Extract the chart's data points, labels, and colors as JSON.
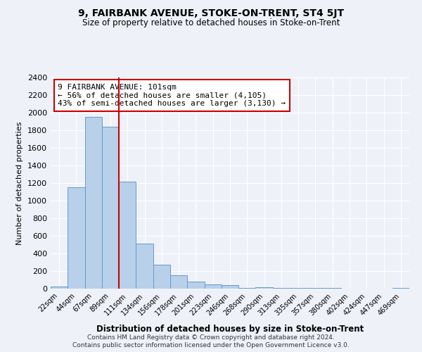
{
  "title": "9, FAIRBANK AVENUE, STOKE-ON-TRENT, ST4 5JT",
  "subtitle": "Size of property relative to detached houses in Stoke-on-Trent",
  "xlabel": "Distribution of detached houses by size in Stoke-on-Trent",
  "ylabel": "Number of detached properties",
  "bin_labels": [
    "22sqm",
    "44sqm",
    "67sqm",
    "89sqm",
    "111sqm",
    "134sqm",
    "156sqm",
    "178sqm",
    "201sqm",
    "223sqm",
    "246sqm",
    "268sqm",
    "290sqm",
    "313sqm",
    "335sqm",
    "357sqm",
    "380sqm",
    "402sqm",
    "424sqm",
    "447sqm",
    "469sqm"
  ],
  "bar_values": [
    25,
    1150,
    1950,
    1840,
    1220,
    510,
    275,
    150,
    80,
    50,
    40,
    10,
    15,
    5,
    5,
    5,
    5,
    2,
    2,
    2,
    5
  ],
  "bar_color": "#b8d0ea",
  "bar_edge_color": "#6699cc",
  "vline_color": "#cc0000",
  "annotation_line1": "9 FAIRBANK AVENUE: 101sqm",
  "annotation_line2": "← 56% of detached houses are smaller (4,105)",
  "annotation_line3": "43% of semi-detached houses are larger (3,130) →",
  "annotation_box_color": "#ffffff",
  "annotation_box_edge": "#cc0000",
  "ylim": [
    0,
    2400
  ],
  "yticks": [
    0,
    200,
    400,
    600,
    800,
    1000,
    1200,
    1400,
    1600,
    1800,
    2000,
    2200,
    2400
  ],
  "footer1": "Contains HM Land Registry data © Crown copyright and database right 2024.",
  "footer2": "Contains public sector information licensed under the Open Government Licence v3.0.",
  "bg_color": "#eef2f8",
  "plot_bg_color": "#eef2f8",
  "vline_index": 3.5
}
